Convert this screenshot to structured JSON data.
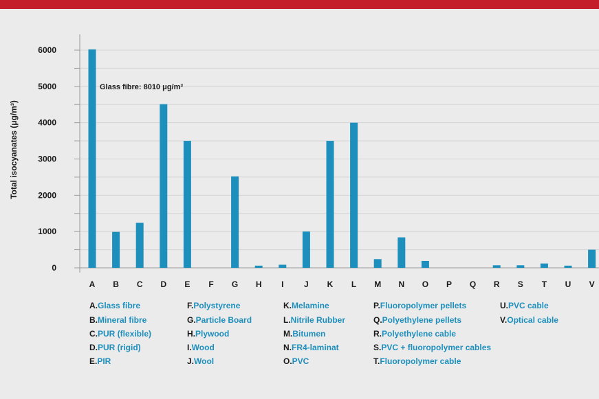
{
  "chart_data": {
    "type": "bar",
    "ylabel": "Total isocyanates (μg/m³)",
    "ylim": [
      0,
      6000
    ],
    "yticks": [
      0,
      1000,
      2000,
      3000,
      4000,
      5000,
      6000
    ],
    "grid": true,
    "bar_color": "#1d8fbd",
    "categories": [
      "A",
      "B",
      "C",
      "D",
      "E",
      "F",
      "G",
      "H",
      "I",
      "J",
      "K",
      "L",
      "M",
      "N",
      "O",
      "P",
      "Q",
      "R",
      "S",
      "T",
      "U",
      "V"
    ],
    "values": [
      6020,
      990,
      1240,
      4510,
      3500,
      0,
      2520,
      60,
      85,
      1000,
      3500,
      4000,
      240,
      840,
      190,
      0,
      0,
      70,
      70,
      120,
      60,
      500
    ],
    "annotation": {
      "text": "Glass fibre: 8010 μg/m³",
      "category": "A"
    }
  },
  "legend": [
    {
      "key": "A.",
      "name": "Glass fibre"
    },
    {
      "key": "B.",
      "name": "Mineral fibre"
    },
    {
      "key": "C.",
      "name": "PUR (flexible)"
    },
    {
      "key": "D.",
      "name": "PUR (rigid)"
    },
    {
      "key": "E.",
      "name": "PIR"
    },
    {
      "key": "F.",
      "name": "Polystyrene"
    },
    {
      "key": "G.",
      "name": "Particle Board"
    },
    {
      "key": "H.",
      "name": "Plywood"
    },
    {
      "key": "I.",
      "name": "Wood"
    },
    {
      "key": "J.",
      "name": "Wool"
    },
    {
      "key": "K.",
      "name": "Melamine"
    },
    {
      "key": "L.",
      "name": "Nitrile Rubber"
    },
    {
      "key": "M.",
      "name": "Bitumen"
    },
    {
      "key": "N.",
      "name": "FR4-laminat"
    },
    {
      "key": "O.",
      "name": "PVC"
    },
    {
      "key": "P.",
      "name": "Fluoropolymer pellets"
    },
    {
      "key": "Q.",
      "name": "Polyethylene pellets"
    },
    {
      "key": "R.",
      "name": "Polyethylene cable"
    },
    {
      "key": "S.",
      "name": "PVC + fluoropolymer cables"
    },
    {
      "key": "T.",
      "name": "Fluoropolymer cable"
    },
    {
      "key": "U.",
      "name": "PVC cable"
    },
    {
      "key": "V.",
      "name": "Optical cable"
    }
  ]
}
